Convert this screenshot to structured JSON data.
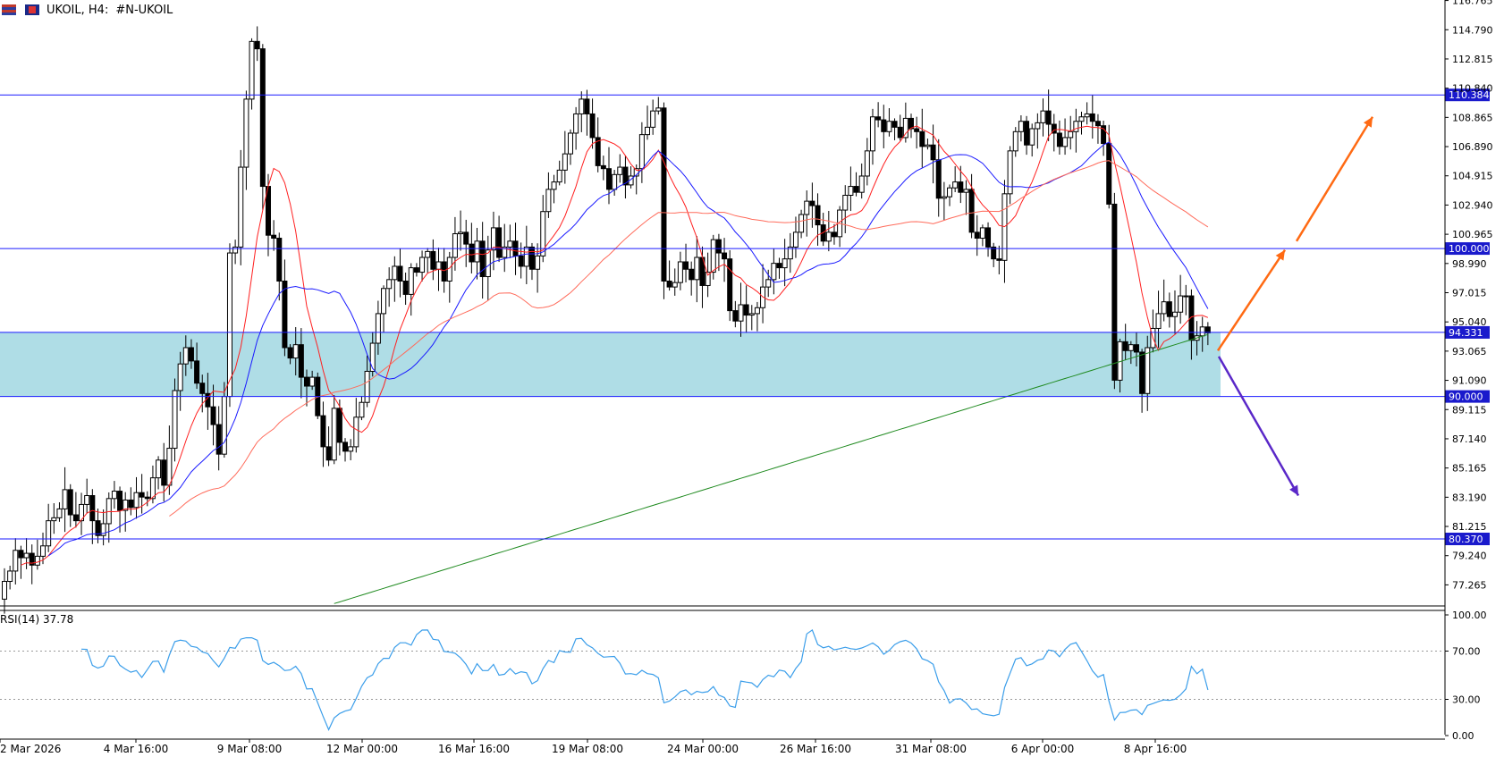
{
  "header": {
    "symbol": "UKOIL, H4:",
    "description": "#N-UKOIL",
    "icons": [
      "chart-type-icon",
      "symbol-flag-icon"
    ]
  },
  "rsi_label": "RSI(14) 37.78",
  "colors": {
    "bull_candle": "#ffffff",
    "bear_candle": "#000000",
    "ma_fast": "#ff2020",
    "ma_mid": "#1a1aff",
    "ma_slow": "#ff6b5b",
    "ma_200": "#1f8a1f",
    "level_line": "#1a1aff",
    "zone_fill": "#afdde6",
    "arrow_up": "#ff6a13",
    "arrow_down": "#5a28c8",
    "rsi_line": "#3b9eea"
  },
  "chart_data": [
    {
      "type": "candlestick",
      "symbol": "UKOIL",
      "timeframe": "H4",
      "ylim": [
        75.9,
        116.8
      ],
      "y_ticks": [
        "116.765",
        "114.790",
        "112.815",
        "110.840",
        "108.865",
        "106.890",
        "104.915",
        "102.940",
        "100.965",
        "98.990",
        "97.015",
        "95.040",
        "93.065",
        "91.090",
        "89.115",
        "87.140",
        "85.165",
        "83.190",
        "81.215",
        "79.240",
        "77.265"
      ],
      "x_ticks": [
        "2 Mar 2026",
        "4 Mar 16:00",
        "9 Mar 08:00",
        "12 Mar 00:00",
        "16 Mar 16:00",
        "19 Mar 08:00",
        "24 Mar 00:00",
        "26 Mar 16:00",
        "31 Mar 08:00",
        "6 Apr 00:00",
        "8 Apr 16:00"
      ],
      "horizontal_levels": [
        {
          "value": 110.384,
          "label": "110.384"
        },
        {
          "value": 100.0,
          "label": "100.000"
        },
        {
          "value": 94.331,
          "label": "94.331"
        },
        {
          "value": 90.0,
          "label": "90.000"
        },
        {
          "value": 80.37,
          "label": "80.370"
        }
      ],
      "zone": {
        "from": 90.0,
        "to": 94.331
      },
      "closes": [
        77.5,
        78.2,
        79.6,
        79.1,
        79.4,
        78.6,
        79.2,
        79.9,
        81.6,
        81.8,
        82.4,
        83.7,
        82.0,
        81.6,
        82.7,
        83.3,
        81.6,
        80.6,
        81.4,
        83.1,
        83.6,
        82.3,
        83.0,
        82.5,
        83.5,
        83.2,
        83.1,
        84.5,
        85.7,
        84.0,
        86.5,
        90.4,
        92.2,
        93.3,
        92.4,
        90.9,
        90.2,
        89.3,
        88.1,
        86.1,
        90.0,
        99.7,
        100.1,
        105.5,
        110.1,
        114.0,
        113.5,
        104.2,
        100.9,
        100.7,
        97.8,
        93.3,
        92.6,
        93.5,
        91.3,
        90.7,
        91.3,
        88.7,
        86.6,
        85.7,
        89.2,
        86.9,
        86.3,
        86.6,
        88.6,
        89.6,
        91.7,
        93.6,
        95.6,
        97.3,
        97.9,
        98.8,
        97.8,
        96.9,
        98.7,
        98.4,
        99.4,
        99.8,
        98.6,
        99.1,
        97.8,
        99.4,
        101.0,
        101.1,
        100.3,
        99.1,
        100.5,
        98.1,
        99.9,
        101.4,
        99.4,
        100.1,
        100.5,
        99.5,
        98.8,
        100.1,
        98.6,
        99.5,
        102.5,
        104.0,
        104.5,
        105.3,
        106.4,
        107.8,
        109.1,
        110.1,
        109.1,
        107.5,
        105.6,
        105.4,
        104.0,
        105.0,
        105.5,
        104.3,
        104.9,
        105.4,
        107.7,
        108.2,
        109.3,
        109.5,
        97.8,
        97.4,
        97.7,
        99.1,
        98.6,
        97.9,
        99.4,
        97.5,
        98.4,
        100.6,
        99.7,
        99.3,
        95.8,
        95.1,
        96.2,
        95.5,
        95.6,
        96.0,
        97.4,
        97.9,
        99.0,
        98.7,
        99.3,
        100.1,
        101.1,
        102.3,
        103.2,
        102.9,
        101.6,
        100.5,
        101.1,
        100.8,
        102.6,
        103.6,
        104.2,
        103.8,
        104.9,
        106.6,
        108.9,
        108.7,
        107.9,
        108.6,
        108.2,
        107.5,
        108.8,
        108.1,
        107.9,
        106.9,
        107.0,
        106.0,
        103.4,
        103.5,
        104.1,
        104.5,
        103.8,
        104.0,
        101.1,
        100.7,
        101.4,
        100.1,
        99.3,
        99.2,
        103.7,
        106.6,
        107.9,
        108.6,
        107.0,
        108.1,
        108.5,
        109.3,
        108.4,
        107.8,
        106.9,
        107.5,
        107.9,
        108.6,
        108.9,
        109.1,
        108.6,
        108.3,
        107.1,
        103.0,
        91.1,
        93.7,
        93.1,
        93.5,
        93.0,
        90.2,
        93.3,
        94.6,
        95.6,
        96.4,
        95.4,
        95.7,
        96.8,
        96.8,
        93.8,
        94.1,
        94.7,
        94.3
      ],
      "ma_periods_note": "",
      "rsi": {
        "label": "RSI(14) 37.78",
        "ylim": [
          0,
          100
        ],
        "levels": [
          70,
          30
        ],
        "y_ticks": [
          "100.00",
          "70.00",
          "30.00",
          "0.00"
        ],
        "last_value": 37.78
      }
    }
  ]
}
